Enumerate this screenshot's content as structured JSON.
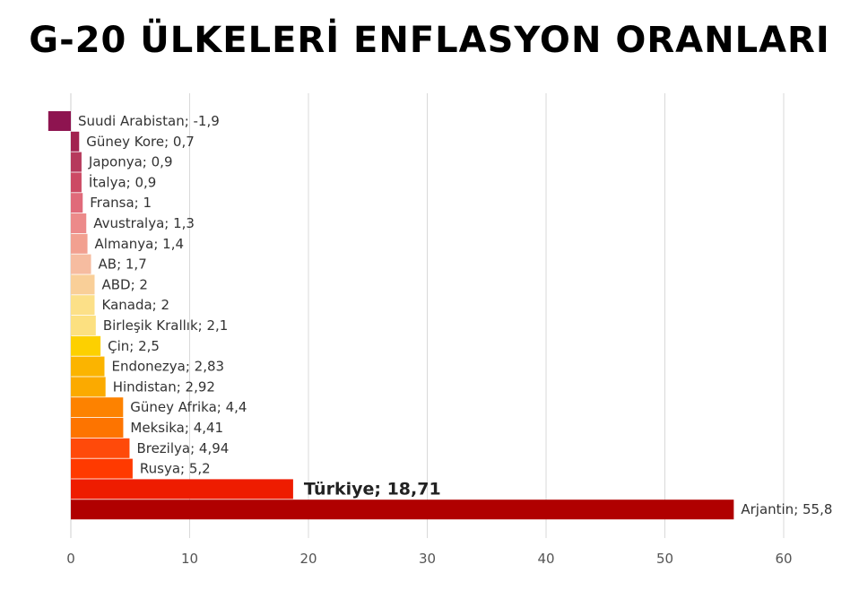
{
  "chart_data": {
    "type": "bar",
    "orientation": "horizontal",
    "title": "G-20 ÜLKELERİ ENFLASYON ORANLARI",
    "xlabel": "",
    "ylabel": "",
    "xlim": [
      0,
      60
    ],
    "xticks": [
      "0",
      "10",
      "20",
      "30",
      "40",
      "50",
      "60"
    ],
    "grid": true,
    "legend": "none",
    "categories": [
      "Suudi Arabistan",
      "Güney Kore",
      "Japonya",
      "İtalya",
      "Fransa",
      "Avustralya",
      "Almanya",
      "AB",
      "ABD",
      "Kanada",
      "Birleşik Krallık",
      "Çin",
      "Endonezya",
      "Hindistan",
      "Güney Afrika",
      "Meksika",
      "Brezilya",
      "Rusya",
      "Türkiye",
      "Arjantin"
    ],
    "values": [
      -1.9,
      0.7,
      0.9,
      0.9,
      1,
      1.3,
      1.4,
      1.7,
      2,
      2,
      2.1,
      2.5,
      2.83,
      2.92,
      4.4,
      4.41,
      4.94,
      5.2,
      18.71,
      55.8
    ],
    "labels": [
      "Suudi Arabistan; -1,9",
      "Güney Kore; 0,7",
      "Japonya; 0,9",
      "İtalya; 0,9",
      "Fransa; 1",
      "Avustralya; 1,3",
      "Almanya; 1,4",
      "AB; 1,7",
      "ABD; 2",
      "Kanada; 2",
      "Birleşik Krallık; 2,1",
      "Çin; 2,5",
      "Endonezya; 2,83",
      "Hindistan; 2,92",
      "Güney Afrika; 4,4",
      "Meksika; 4,41",
      "Brezilya; 4,94",
      "Rusya; 5,2",
      "Türkiye; 18,71",
      "Arjantin; 55,8"
    ],
    "highlight": "Türkiye; 18,71",
    "colors": [
      "#8e1450",
      "#a2234f",
      "#b63a5c",
      "#cc4a64",
      "#e06a7a",
      "#ec8a8a",
      "#f2a090",
      "#f6bca0",
      "#f9cf98",
      "#fce088",
      "#fce080",
      "#fdd000",
      "#fbb400",
      "#fbaa00",
      "#fd8200",
      "#fd7400",
      "#ff4a0a",
      "#ff3a00",
      "#ee1c00",
      "#b00000"
    ]
  }
}
